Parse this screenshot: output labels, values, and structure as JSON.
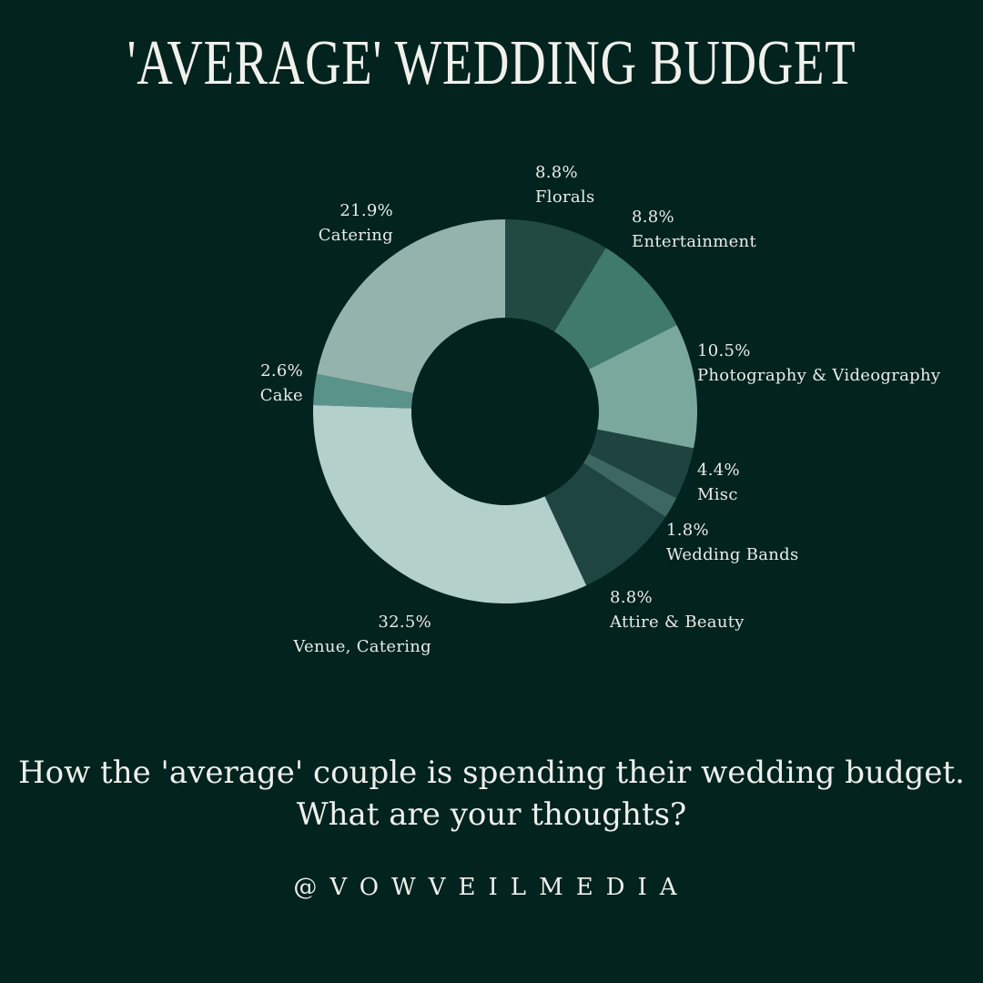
{
  "title": "'AVERAGE' WEDDING BUDGET",
  "caption": {
    "line1": "How the 'average' couple is spending their wedding budget.",
    "line2": "What are your thoughts?"
  },
  "handle": "@VOWVEILMEDIA",
  "chart_data": {
    "type": "pie",
    "donut": true,
    "slices": [
      {
        "label": "Florals",
        "percent_label": "8.8%",
        "value": 8.8,
        "color": "#214a42"
      },
      {
        "label": "Entertainment",
        "percent_label": "8.8%",
        "value": 8.8,
        "color": "#3f7a6d"
      },
      {
        "label": "Photography & Videography",
        "percent_label": "10.5%",
        "value": 10.5,
        "color": "#7aa89d"
      },
      {
        "label": "Misc",
        "percent_label": "4.4%",
        "value": 4.4,
        "color": "#1f4440"
      },
      {
        "label": "Wedding Bands",
        "percent_label": "1.8%",
        "value": 1.8,
        "color": "#3d6761"
      },
      {
        "label": "Attire & Beauty",
        "percent_label": "8.8%",
        "value": 8.8,
        "color": "#1f4541"
      },
      {
        "label": "Venue, Catering",
        "percent_label": "32.5%",
        "value": 32.5,
        "color": "#b3d0cb"
      },
      {
        "label": "Cake",
        "percent_label": "2.6%",
        "value": 2.6,
        "color": "#5a938a"
      },
      {
        "label": "Catering",
        "percent_label": "21.9%",
        "value": 21.9,
        "color": "#95b3ad"
      }
    ]
  }
}
